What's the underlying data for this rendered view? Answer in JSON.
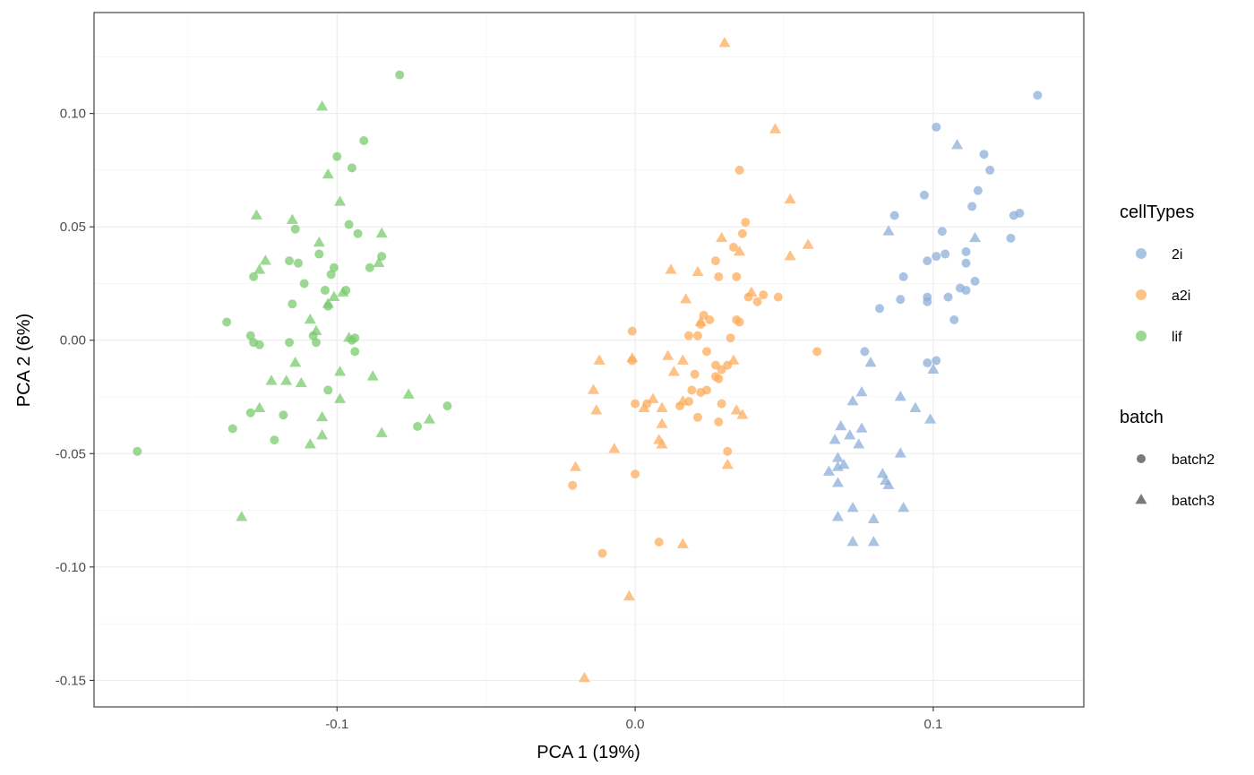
{
  "chart_data": {
    "type": "scatter",
    "xlabel": "PCA 1 (19%)",
    "ylabel": "PCA 2 (6%)",
    "xlim": [
      -0.1815,
      0.1505
    ],
    "ylim": [
      -0.1617,
      0.1445
    ],
    "x_ticks": [
      -0.1,
      0.0,
      0.1
    ],
    "x_tick_labels": [
      "-0.1",
      "0.0",
      "0.1"
    ],
    "y_ticks": [
      -0.15,
      -0.1,
      -0.05,
      0.0,
      0.05,
      0.1
    ],
    "y_tick_labels": [
      "-0.15",
      "-0.10",
      "-0.05",
      "0.00",
      "0.05",
      "0.10"
    ],
    "grid": true,
    "legend_position": "right",
    "legends": [
      {
        "title": "cellTypes",
        "kind": "color",
        "items": [
          {
            "label": "2i",
            "color": "#8DAFDA"
          },
          {
            "label": "a2i",
            "color": "#FDAC5E"
          },
          {
            "label": "lif",
            "color": "#79CB6D"
          }
        ]
      },
      {
        "title": "batch",
        "kind": "shape",
        "items": [
          {
            "label": "batch2",
            "shape": "circle"
          },
          {
            "label": "batch3",
            "shape": "triangle"
          }
        ]
      }
    ],
    "series": [
      {
        "cellType": "2i",
        "batch": "batch2",
        "color": "#8DAFDA",
        "shape": "circle",
        "points": [
          [
            0.101,
            0.094
          ],
          [
            0.135,
            0.108
          ],
          [
            0.097,
            0.064
          ],
          [
            0.117,
            0.082
          ],
          [
            0.119,
            0.075
          ],
          [
            0.115,
            0.066
          ],
          [
            0.113,
            0.059
          ],
          [
            0.129,
            0.056
          ],
          [
            0.127,
            0.055
          ],
          [
            0.087,
            0.055
          ],
          [
            0.126,
            0.045
          ],
          [
            0.103,
            0.048
          ],
          [
            0.111,
            0.039
          ],
          [
            0.101,
            0.037
          ],
          [
            0.104,
            0.038
          ],
          [
            0.098,
            0.035
          ],
          [
            0.111,
            0.034
          ],
          [
            0.09,
            0.028
          ],
          [
            0.114,
            0.026
          ],
          [
            0.109,
            0.023
          ],
          [
            0.111,
            0.022
          ],
          [
            0.098,
            0.019
          ],
          [
            0.089,
            0.018
          ],
          [
            0.098,
            0.017
          ],
          [
            0.105,
            0.019
          ],
          [
            0.082,
            0.014
          ],
          [
            0.107,
            0.009
          ],
          [
            0.077,
            -0.005
          ],
          [
            0.098,
            -0.01
          ],
          [
            0.101,
            -0.009
          ]
        ]
      },
      {
        "cellType": "2i",
        "batch": "batch3",
        "color": "#8DAFDA",
        "shape": "triangle",
        "points": [
          [
            0.108,
            0.086
          ],
          [
            0.085,
            0.048
          ],
          [
            0.114,
            0.045
          ],
          [
            0.079,
            -0.01
          ],
          [
            0.1,
            -0.013
          ],
          [
            0.076,
            -0.023
          ],
          [
            0.073,
            -0.027
          ],
          [
            0.089,
            -0.025
          ],
          [
            0.094,
            -0.03
          ],
          [
            0.099,
            -0.035
          ],
          [
            0.069,
            -0.038
          ],
          [
            0.076,
            -0.039
          ],
          [
            0.072,
            -0.042
          ],
          [
            0.067,
            -0.044
          ],
          [
            0.075,
            -0.046
          ],
          [
            0.068,
            -0.052
          ],
          [
            0.07,
            -0.055
          ],
          [
            0.068,
            -0.056
          ],
          [
            0.089,
            -0.05
          ],
          [
            0.065,
            -0.058
          ],
          [
            0.083,
            -0.059
          ],
          [
            0.084,
            -0.062
          ],
          [
            0.085,
            -0.064
          ],
          [
            0.068,
            -0.063
          ],
          [
            0.073,
            -0.074
          ],
          [
            0.09,
            -0.074
          ],
          [
            0.068,
            -0.078
          ],
          [
            0.08,
            -0.079
          ],
          [
            0.073,
            -0.089
          ],
          [
            0.08,
            -0.089
          ]
        ]
      },
      {
        "cellType": "a2i",
        "batch": "batch2",
        "color": "#FDAC5E",
        "shape": "circle",
        "points": [
          [
            0.035,
            0.075
          ],
          [
            0.037,
            0.052
          ],
          [
            0.036,
            0.047
          ],
          [
            0.033,
            0.041
          ],
          [
            0.027,
            0.035
          ],
          [
            0.028,
            0.028
          ],
          [
            0.034,
            0.028
          ],
          [
            0.038,
            0.019
          ],
          [
            0.041,
            0.017
          ],
          [
            0.043,
            0.02
          ],
          [
            0.048,
            0.019
          ],
          [
            0.025,
            0.009
          ],
          [
            0.023,
            0.011
          ],
          [
            0.034,
            0.009
          ],
          [
            0.035,
            0.008
          ],
          [
            0.022,
            0.007
          ],
          [
            -0.001,
            0.004
          ],
          [
            0.018,
            0.002
          ],
          [
            0.021,
            0.002
          ],
          [
            0.032,
            0.001
          ],
          [
            0.024,
            -0.005
          ],
          [
            0.061,
            -0.005
          ],
          [
            -0.001,
            -0.009
          ],
          [
            0.02,
            -0.015
          ],
          [
            0.027,
            -0.016
          ],
          [
            0.028,
            -0.017
          ],
          [
            0.029,
            -0.013
          ],
          [
            0.027,
            -0.011
          ],
          [
            0.031,
            -0.011
          ],
          [
            0.024,
            -0.022
          ],
          [
            0.019,
            -0.022
          ],
          [
            0.022,
            -0.023
          ],
          [
            0.018,
            -0.027
          ],
          [
            0.0,
            -0.028
          ],
          [
            0.004,
            -0.028
          ],
          [
            0.015,
            -0.029
          ],
          [
            0.029,
            -0.028
          ],
          [
            0.021,
            -0.034
          ],
          [
            0.028,
            -0.036
          ],
          [
            0.031,
            -0.049
          ],
          [
            0.0,
            -0.059
          ],
          [
            -0.021,
            -0.064
          ],
          [
            0.008,
            -0.089
          ],
          [
            -0.011,
            -0.094
          ]
        ]
      },
      {
        "cellType": "a2i",
        "batch": "batch3",
        "color": "#FDAC5E",
        "shape": "triangle",
        "points": [
          [
            0.03,
            0.131
          ],
          [
            0.047,
            0.093
          ],
          [
            0.052,
            0.062
          ],
          [
            0.029,
            0.045
          ],
          [
            0.035,
            0.039
          ],
          [
            0.058,
            0.042
          ],
          [
            0.052,
            0.037
          ],
          [
            0.012,
            0.031
          ],
          [
            0.021,
            0.03
          ],
          [
            0.039,
            0.021
          ],
          [
            0.017,
            0.018
          ],
          [
            0.022,
            0.008
          ],
          [
            0.011,
            -0.007
          ],
          [
            -0.012,
            -0.009
          ],
          [
            -0.001,
            -0.008
          ],
          [
            0.016,
            -0.009
          ],
          [
            0.033,
            -0.009
          ],
          [
            0.013,
            -0.014
          ],
          [
            -0.014,
            -0.022
          ],
          [
            0.006,
            -0.026
          ],
          [
            0.016,
            -0.027
          ],
          [
            0.003,
            -0.03
          ],
          [
            0.009,
            -0.03
          ],
          [
            -0.013,
            -0.031
          ],
          [
            0.034,
            -0.031
          ],
          [
            0.036,
            -0.033
          ],
          [
            0.009,
            -0.037
          ],
          [
            0.008,
            -0.044
          ],
          [
            0.009,
            -0.046
          ],
          [
            -0.007,
            -0.048
          ],
          [
            0.031,
            -0.055
          ],
          [
            -0.02,
            -0.056
          ],
          [
            0.016,
            -0.09
          ],
          [
            -0.002,
            -0.113
          ],
          [
            -0.017,
            -0.149
          ]
        ]
      },
      {
        "cellType": "lif",
        "batch": "batch2",
        "color": "#79CB6D",
        "shape": "circle",
        "points": [
          [
            -0.079,
            0.117
          ],
          [
            -0.091,
            0.088
          ],
          [
            -0.1,
            0.081
          ],
          [
            -0.095,
            0.076
          ],
          [
            -0.096,
            0.051
          ],
          [
            -0.114,
            0.049
          ],
          [
            -0.093,
            0.047
          ],
          [
            -0.085,
            0.037
          ],
          [
            -0.106,
            0.038
          ],
          [
            -0.116,
            0.035
          ],
          [
            -0.113,
            0.034
          ],
          [
            -0.101,
            0.032
          ],
          [
            -0.089,
            0.032
          ],
          [
            -0.102,
            0.029
          ],
          [
            -0.128,
            0.028
          ],
          [
            -0.111,
            0.025
          ],
          [
            -0.097,
            0.022
          ],
          [
            -0.104,
            0.022
          ],
          [
            -0.115,
            0.016
          ],
          [
            -0.103,
            0.015
          ],
          [
            -0.137,
            0.008
          ],
          [
            -0.129,
            0.002
          ],
          [
            -0.108,
            0.002
          ],
          [
            -0.094,
            0.001
          ],
          [
            -0.095,
            0.0
          ],
          [
            -0.128,
            -0.001
          ],
          [
            -0.126,
            -0.002
          ],
          [
            -0.116,
            -0.001
          ],
          [
            -0.107,
            -0.001
          ],
          [
            -0.094,
            -0.005
          ],
          [
            -0.103,
            -0.022
          ],
          [
            -0.129,
            -0.032
          ],
          [
            -0.118,
            -0.033
          ],
          [
            -0.063,
            -0.029
          ],
          [
            -0.135,
            -0.039
          ],
          [
            -0.073,
            -0.038
          ],
          [
            -0.121,
            -0.044
          ],
          [
            -0.167,
            -0.049
          ]
        ]
      },
      {
        "cellType": "lif",
        "batch": "batch3",
        "color": "#79CB6D",
        "shape": "triangle",
        "points": [
          [
            -0.105,
            0.103
          ],
          [
            -0.103,
            0.073
          ],
          [
            -0.099,
            0.061
          ],
          [
            -0.127,
            0.055
          ],
          [
            -0.115,
            0.053
          ],
          [
            -0.106,
            0.043
          ],
          [
            -0.085,
            0.047
          ],
          [
            -0.124,
            0.035
          ],
          [
            -0.086,
            0.034
          ],
          [
            -0.126,
            0.031
          ],
          [
            -0.098,
            0.021
          ],
          [
            -0.101,
            0.019
          ],
          [
            -0.103,
            0.016
          ],
          [
            -0.109,
            0.009
          ],
          [
            -0.107,
            0.004
          ],
          [
            -0.096,
            0.001
          ],
          [
            -0.114,
            -0.01
          ],
          [
            -0.099,
            -0.014
          ],
          [
            -0.088,
            -0.016
          ],
          [
            -0.122,
            -0.018
          ],
          [
            -0.117,
            -0.018
          ],
          [
            -0.112,
            -0.019
          ],
          [
            -0.076,
            -0.024
          ],
          [
            -0.099,
            -0.026
          ],
          [
            -0.126,
            -0.03
          ],
          [
            -0.105,
            -0.034
          ],
          [
            -0.069,
            -0.035
          ],
          [
            -0.105,
            -0.042
          ],
          [
            -0.085,
            -0.041
          ],
          [
            -0.109,
            -0.046
          ],
          [
            -0.132,
            -0.078
          ]
        ]
      }
    ]
  }
}
